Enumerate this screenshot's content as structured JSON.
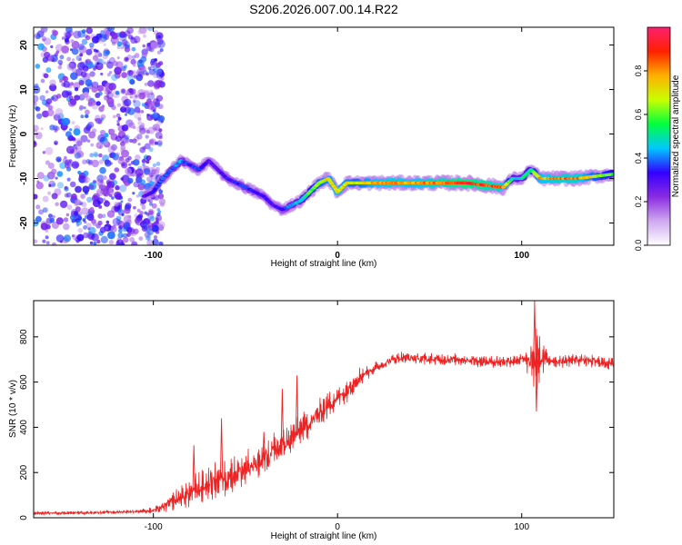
{
  "title": "S206.2026.007.00.14.R22",
  "chart_data": [
    {
      "type": "heatmap",
      "xlabel": "Height of straight line (km)",
      "ylabel": "Frequency (Hz)",
      "xlim": [
        -165,
        150
      ],
      "ylim": [
        -25,
        24
      ],
      "xticks": [
        -100,
        0,
        100
      ],
      "yticks": [
        -20,
        -10,
        0,
        10,
        20
      ],
      "grid": false,
      "colorbar": {
        "label": "Normalized spectral amplitude",
        "range": [
          0,
          1
        ],
        "ticks": [
          "0.0",
          "0.2",
          "0.4",
          "0.6",
          "0.8"
        ],
        "colors": [
          "#ffffff",
          "#cfa8f0",
          "#8a2be2",
          "#3300ff",
          "#00c8ff",
          "#00ff40",
          "#c8ff00",
          "#ffb000",
          "#ff2000",
          "#ff1f70"
        ]
      },
      "ridge": {
        "x": [
          -105,
          -100,
          -95,
          -90,
          -85,
          -80,
          -75,
          -70,
          -65,
          -60,
          -55,
          -50,
          -45,
          -40,
          -35,
          -30,
          -25,
          -20,
          -15,
          -10,
          -5,
          0,
          5,
          10,
          20,
          30,
          40,
          50,
          60,
          70,
          80,
          90,
          95,
          100,
          105,
          110,
          120,
          130,
          140,
          150
        ],
        "y": [
          -14,
          -13,
          -10,
          -8,
          -6,
          -7,
          -8,
          -6,
          -8,
          -10,
          -11,
          -12,
          -13,
          -14,
          -16,
          -17,
          -16,
          -15,
          -13,
          -11,
          -10,
          -13,
          -11,
          -11,
          -11,
          -11,
          -11,
          -11,
          -11,
          -11,
          -11.5,
          -12,
          -10,
          -10,
          -8,
          -10,
          -10,
          -10,
          -9.5,
          -9
        ],
        "amplitude": [
          0.3,
          0.35,
          0.4,
          0.4,
          0.45,
          0.35,
          0.4,
          0.3,
          0.3,
          0.35,
          0.35,
          0.4,
          0.35,
          0.35,
          0.3,
          0.35,
          0.45,
          0.5,
          0.6,
          0.7,
          0.75,
          0.8,
          0.75,
          0.7,
          0.8,
          0.85,
          0.8,
          0.85,
          0.9,
          0.95,
          0.9,
          0.85,
          0.5,
          0.5,
          0.55,
          0.8,
          0.85,
          0.85,
          0.7,
          0.6
        ]
      },
      "noise_region_x": [
        -165,
        -95
      ],
      "noise_amplitude_max": 0.3
    },
    {
      "type": "line",
      "xlabel": "Height of straight line (km)",
      "ylabel": "SNR (10 * v/v)",
      "xlim": [
        -165,
        150
      ],
      "ylim": [
        0,
        960
      ],
      "xticks": [
        -100,
        0,
        100
      ],
      "yticks": [
        0,
        200,
        400,
        600,
        800
      ],
      "grid": false,
      "series": [
        {
          "color": "#ee2222",
          "x": [
            -165,
            -140,
            -120,
            -110,
            -100,
            -95,
            -90,
            -85,
            -80,
            -75,
            -70,
            -65,
            -60,
            -55,
            -50,
            -45,
            -40,
            -35,
            -30,
            -25,
            -20,
            -15,
            -10,
            -5,
            0,
            5,
            10,
            15,
            20,
            25,
            30,
            35,
            40,
            50,
            60,
            70,
            80,
            90,
            100,
            103,
            106,
            108,
            110,
            115,
            120,
            130,
            140,
            150
          ],
          "y": [
            20,
            22,
            25,
            28,
            32,
            45,
            70,
            90,
            110,
            130,
            150,
            170,
            180,
            200,
            210,
            230,
            260,
            290,
            320,
            350,
            390,
            420,
            460,
            500,
            530,
            560,
            610,
            640,
            660,
            680,
            700,
            710,
            705,
            700,
            700,
            700,
            690,
            690,
            700,
            690,
            680,
            700,
            700,
            700,
            690,
            700,
            690,
            680
          ],
          "noise_amplitude": [
            8,
            8,
            8,
            10,
            15,
            25,
            40,
            60,
            70,
            80,
            80,
            90,
            90,
            90,
            90,
            90,
            90,
            90,
            80,
            80,
            70,
            70,
            70,
            60,
            60,
            60,
            50,
            40,
            30,
            30,
            30,
            30,
            30,
            30,
            30,
            30,
            30,
            30,
            30,
            60,
            120,
            160,
            100,
            40,
            30,
            30,
            30,
            30
          ],
          "spikes": [
            {
              "x": -78,
              "y": 320
            },
            {
              "x": -63,
              "y": 440
            },
            {
              "x": -40,
              "y": 380
            },
            {
              "x": -30,
              "y": 570
            },
            {
              "x": -22,
              "y": 630
            },
            {
              "x": 107,
              "y": 960
            },
            {
              "x": 108,
              "y": 470
            }
          ]
        }
      ]
    }
  ]
}
